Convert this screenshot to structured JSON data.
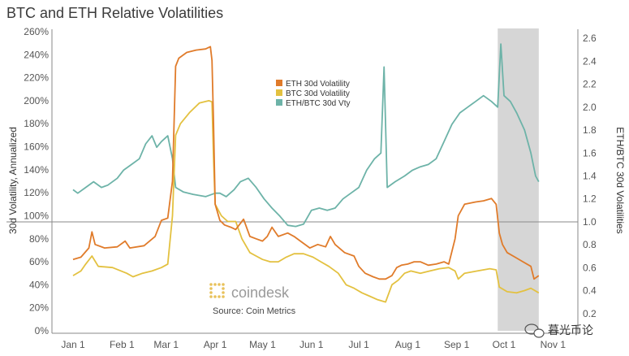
{
  "chart_data": {
    "type": "line",
    "title": "BTC and ETH Relative Volatilities",
    "ylabel_left": "30d Volatility, Annualized",
    "ylabel_right": "ETH/BTC 30d Volatilities",
    "xlabel": "",
    "x_ticks": [
      "Jan 1",
      "Feb 1",
      "Mar 1",
      "Apr 1",
      "May 1",
      "Jun 1",
      "Jul 1",
      "Aug 1",
      "Sep 1",
      "Oct 1",
      "Nov 1"
    ],
    "x_range_days": [
      0,
      310
    ],
    "x_tick_days": [
      0,
      31,
      59,
      90,
      120,
      151,
      181,
      212,
      243,
      273,
      304
    ],
    "left_ticks": [
      "0%",
      "20%",
      "40%",
      "60%",
      "80%",
      "100%",
      "120%",
      "140%",
      "160%",
      "180%",
      "200%",
      "220%",
      "240%",
      "260%"
    ],
    "left_range": [
      0,
      260
    ],
    "right_ticks": [
      "0.2",
      "0.4",
      "0.6",
      "0.8",
      "1.0",
      "1.2",
      "1.4",
      "1.6",
      "1.8",
      "2.0",
      "2.2",
      "2.4",
      "2.6"
    ],
    "right_range": [
      0.1,
      2.7
    ],
    "reference_line_right": 1.0,
    "shaded_region_days": [
      269,
      295
    ],
    "legend": [
      "ETH 30d Volatility",
      "BTC 30d Volatility",
      "ETH/BTC 30d Vty"
    ],
    "series": [
      {
        "name": "ETH 30d Volatility",
        "axis": "left",
        "color": "#e07b2a",
        "points": [
          [
            0,
            62
          ],
          [
            5,
            64
          ],
          [
            10,
            72
          ],
          [
            12,
            86
          ],
          [
            14,
            75
          ],
          [
            20,
            72
          ],
          [
            28,
            73
          ],
          [
            33,
            78
          ],
          [
            36,
            72
          ],
          [
            45,
            74
          ],
          [
            52,
            82
          ],
          [
            56,
            96
          ],
          [
            60,
            98
          ],
          [
            63,
            130
          ],
          [
            65,
            230
          ],
          [
            67,
            237
          ],
          [
            72,
            242
          ],
          [
            78,
            244
          ],
          [
            84,
            245
          ],
          [
            87,
            247
          ],
          [
            88,
            235
          ],
          [
            89,
            180
          ],
          [
            90,
            110
          ],
          [
            93,
            96
          ],
          [
            96,
            92
          ],
          [
            100,
            90
          ],
          [
            103,
            88
          ],
          [
            108,
            97
          ],
          [
            112,
            82
          ],
          [
            116,
            80
          ],
          [
            120,
            78
          ],
          [
            123,
            82
          ],
          [
            126,
            90
          ],
          [
            130,
            82
          ],
          [
            136,
            85
          ],
          [
            140,
            82
          ],
          [
            145,
            77
          ],
          [
            150,
            72
          ],
          [
            155,
            75
          ],
          [
            160,
            73
          ],
          [
            163,
            82
          ],
          [
            166,
            75
          ],
          [
            172,
            68
          ],
          [
            178,
            65
          ],
          [
            181,
            56
          ],
          [
            185,
            50
          ],
          [
            190,
            47
          ],
          [
            194,
            45
          ],
          [
            198,
            45
          ],
          [
            202,
            48
          ],
          [
            205,
            55
          ],
          [
            208,
            57
          ],
          [
            212,
            58
          ],
          [
            216,
            60
          ],
          [
            220,
            60
          ],
          [
            225,
            57
          ],
          [
            230,
            58
          ],
          [
            235,
            60
          ],
          [
            238,
            58
          ],
          [
            242,
            80
          ],
          [
            244,
            100
          ],
          [
            248,
            110
          ],
          [
            255,
            112
          ],
          [
            260,
            113
          ],
          [
            265,
            115
          ],
          [
            268,
            110
          ],
          [
            270,
            85
          ],
          [
            272,
            75
          ],
          [
            275,
            68
          ],
          [
            280,
            64
          ],
          [
            285,
            60
          ],
          [
            290,
            56
          ],
          [
            292,
            45
          ],
          [
            295,
            48
          ]
        ]
      },
      {
        "name": "BTC 30d Volatility",
        "axis": "left",
        "color": "#e3c140",
        "points": [
          [
            0,
            48
          ],
          [
            5,
            52
          ],
          [
            8,
            58
          ],
          [
            12,
            65
          ],
          [
            16,
            56
          ],
          [
            25,
            55
          ],
          [
            34,
            50
          ],
          [
            38,
            47
          ],
          [
            44,
            50
          ],
          [
            50,
            52
          ],
          [
            56,
            55
          ],
          [
            60,
            58
          ],
          [
            63,
            100
          ],
          [
            65,
            170
          ],
          [
            68,
            180
          ],
          [
            74,
            190
          ],
          [
            80,
            198
          ],
          [
            86,
            200
          ],
          [
            88,
            199
          ],
          [
            89,
            150
          ],
          [
            90,
            110
          ],
          [
            94,
            100
          ],
          [
            98,
            95
          ],
          [
            103,
            95
          ],
          [
            107,
            80
          ],
          [
            112,
            68
          ],
          [
            116,
            65
          ],
          [
            120,
            62
          ],
          [
            125,
            60
          ],
          [
            130,
            60
          ],
          [
            135,
            64
          ],
          [
            140,
            67
          ],
          [
            146,
            67
          ],
          [
            152,
            64
          ],
          [
            157,
            60
          ],
          [
            162,
            56
          ],
          [
            168,
            50
          ],
          [
            173,
            40
          ],
          [
            178,
            37
          ],
          [
            183,
            33
          ],
          [
            188,
            30
          ],
          [
            193,
            27
          ],
          [
            198,
            25
          ],
          [
            202,
            40
          ],
          [
            206,
            44
          ],
          [
            210,
            50
          ],
          [
            214,
            52
          ],
          [
            220,
            50
          ],
          [
            226,
            52
          ],
          [
            232,
            54
          ],
          [
            238,
            55
          ],
          [
            242,
            52
          ],
          [
            244,
            45
          ],
          [
            248,
            50
          ],
          [
            256,
            52
          ],
          [
            264,
            54
          ],
          [
            268,
            53
          ],
          [
            270,
            38
          ],
          [
            275,
            34
          ],
          [
            281,
            33
          ],
          [
            286,
            35
          ],
          [
            290,
            37
          ],
          [
            295,
            33
          ]
        ]
      },
      {
        "name": "ETH/BTC 30d Vty",
        "axis": "right",
        "color": "#6db3a8",
        "points": [
          [
            0,
            1.28
          ],
          [
            3,
            1.25
          ],
          [
            8,
            1.3
          ],
          [
            13,
            1.35
          ],
          [
            18,
            1.3
          ],
          [
            22,
            1.32
          ],
          [
            28,
            1.38
          ],
          [
            32,
            1.45
          ],
          [
            37,
            1.5
          ],
          [
            42,
            1.55
          ],
          [
            46,
            1.68
          ],
          [
            50,
            1.75
          ],
          [
            53,
            1.65
          ],
          [
            56,
            1.7
          ],
          [
            60,
            1.75
          ],
          [
            63,
            1.55
          ],
          [
            65,
            1.3
          ],
          [
            70,
            1.26
          ],
          [
            76,
            1.24
          ],
          [
            84,
            1.22
          ],
          [
            90,
            1.25
          ],
          [
            93,
            1.25
          ],
          [
            97,
            1.22
          ],
          [
            102,
            1.28
          ],
          [
            106,
            1.35
          ],
          [
            111,
            1.38
          ],
          [
            116,
            1.3
          ],
          [
            121,
            1.2
          ],
          [
            126,
            1.12
          ],
          [
            131,
            1.05
          ],
          [
            136,
            0.97
          ],
          [
            141,
            0.96
          ],
          [
            146,
            0.98
          ],
          [
            151,
            1.1
          ],
          [
            156,
            1.12
          ],
          [
            161,
            1.1
          ],
          [
            166,
            1.12
          ],
          [
            171,
            1.2
          ],
          [
            176,
            1.25
          ],
          [
            181,
            1.3
          ],
          [
            186,
            1.45
          ],
          [
            191,
            1.55
          ],
          [
            195,
            1.6
          ],
          [
            197,
            2.35
          ],
          [
            199,
            1.3
          ],
          [
            204,
            1.35
          ],
          [
            210,
            1.4
          ],
          [
            215,
            1.45
          ],
          [
            220,
            1.48
          ],
          [
            225,
            1.5
          ],
          [
            230,
            1.55
          ],
          [
            235,
            1.7
          ],
          [
            240,
            1.85
          ],
          [
            245,
            1.95
          ],
          [
            250,
            2.0
          ],
          [
            255,
            2.05
          ],
          [
            260,
            2.1
          ],
          [
            265,
            2.05
          ],
          [
            269,
            2.0
          ],
          [
            271,
            2.55
          ],
          [
            273,
            2.1
          ],
          [
            277,
            2.05
          ],
          [
            281,
            1.95
          ],
          [
            286,
            1.8
          ],
          [
            290,
            1.6
          ],
          [
            293,
            1.4
          ],
          [
            295,
            1.35
          ]
        ]
      }
    ]
  },
  "watermark": {
    "brand": "coindesk",
    "source": "Source: Coin Metrics",
    "wechat": "暮光币论",
    "logo_icon": "coindesk-logo-icon",
    "wechat_icon": "wechat-icon"
  },
  "colors": {
    "shade": "#d6d6d6",
    "refline": "#8a8a8a",
    "axis": "#888888"
  }
}
